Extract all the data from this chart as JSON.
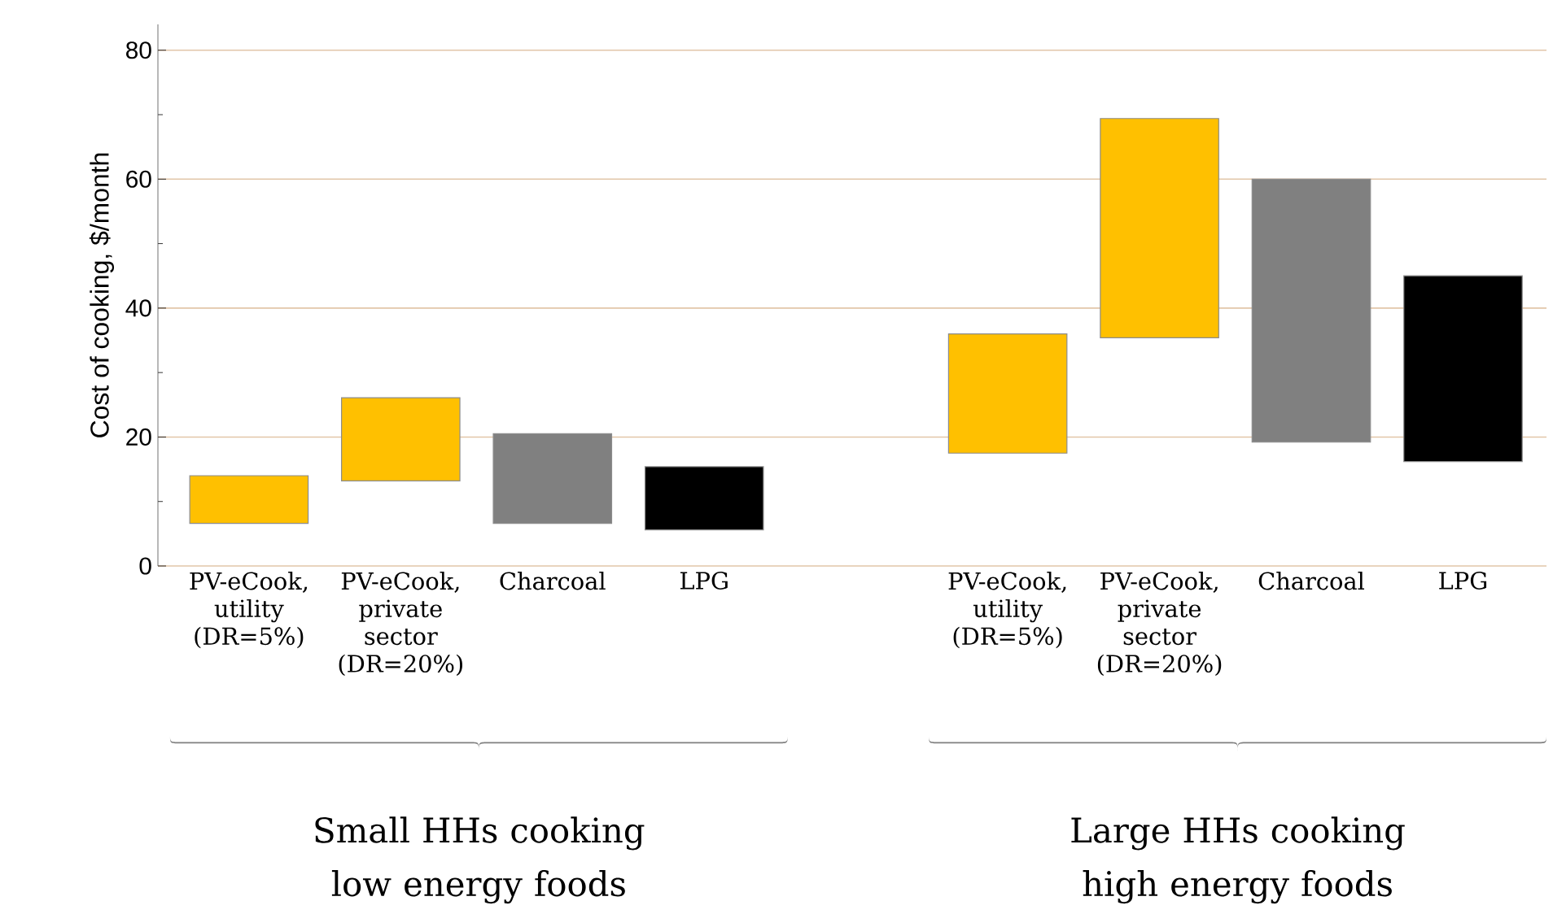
{
  "chart_data": {
    "type": "bar",
    "ylabel": "Cost of cooking, $/month",
    "categories": [
      "PV-eCook, utility (DR=5%)",
      "PV-eCook, private sector (DR=20%)",
      "Charcoal",
      "LPG",
      null,
      "PV-eCook, utility (DR=5%)",
      "PV-eCook, private sector (DR=20%)",
      "Charcoal",
      "LPG"
    ],
    "base": [
      6.6,
      13.2,
      6.6,
      5.6,
      null,
      17.5,
      35.4,
      19.2,
      16.2
    ],
    "values": [
      7.4,
      12.9,
      13.9,
      9.8,
      null,
      18.5,
      34,
      40.8,
      28.8
    ],
    "colors": [
      "#ffc000",
      "#ffc000",
      "#808080",
      "#000000",
      null,
      "#ffc000",
      "#ffc000",
      "#808080",
      "#000000"
    ],
    "ylim": [
      0,
      84
    ],
    "yticks": [
      0,
      20,
      40,
      60,
      80
    ],
    "grid": "y",
    "annotations": [
      "Small HHs cooking low energy foods",
      "Large HHs cooking high energy foods"
    ]
  }
}
